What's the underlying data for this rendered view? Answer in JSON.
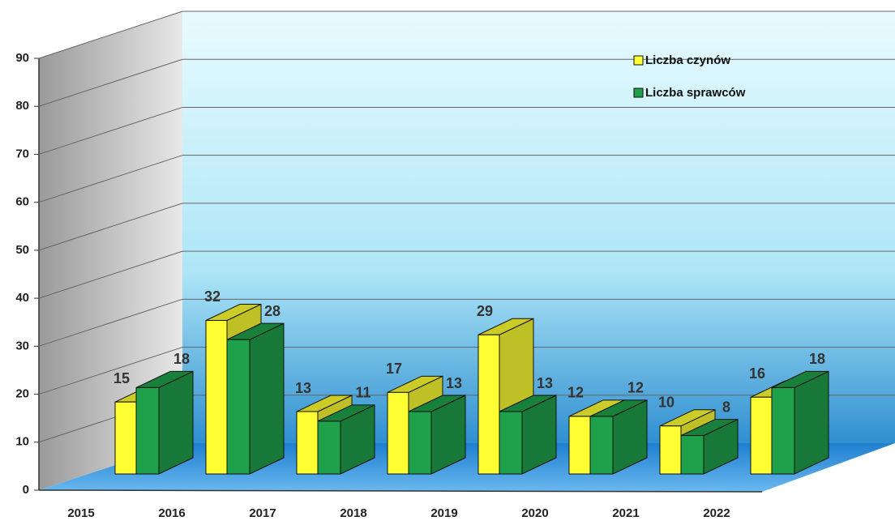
{
  "chart_data": {
    "type": "bar3d",
    "categories": [
      "2015",
      "2016",
      "2017",
      "2018",
      "2019",
      "2020",
      "2021",
      "2022"
    ],
    "series": [
      {
        "name": "Liczba czynów",
        "color": "#ffff33",
        "values": [
          15,
          32,
          13,
          17,
          29,
          12,
          10,
          16
        ]
      },
      {
        "name": "Liczba sprawców",
        "color": "#1fa04a",
        "values": [
          18,
          28,
          11,
          13,
          13,
          12,
          8,
          18
        ]
      }
    ],
    "ylim": [
      0,
      90
    ],
    "yticks": [
      0,
      10,
      20,
      30,
      40,
      50,
      60,
      70,
      80,
      90
    ],
    "grid": true,
    "legend": "top-right"
  }
}
